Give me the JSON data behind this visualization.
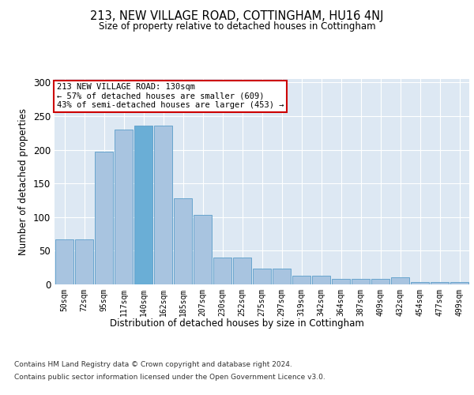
{
  "title": "213, NEW VILLAGE ROAD, COTTINGHAM, HU16 4NJ",
  "subtitle": "Size of property relative to detached houses in Cottingham",
  "xlabel": "Distribution of detached houses by size in Cottingham",
  "ylabel": "Number of detached properties",
  "footer_line1": "Contains HM Land Registry data © Crown copyright and database right 2024.",
  "footer_line2": "Contains public sector information licensed under the Open Government Licence v3.0.",
  "categories": [
    "50sqm",
    "72sqm",
    "95sqm",
    "117sqm",
    "140sqm",
    "162sqm",
    "185sqm",
    "207sqm",
    "230sqm",
    "252sqm",
    "275sqm",
    "297sqm",
    "319sqm",
    "342sqm",
    "364sqm",
    "387sqm",
    "409sqm",
    "432sqm",
    "454sqm",
    "477sqm",
    "499sqm"
  ],
  "values": [
    67,
    67,
    197,
    230,
    236,
    236,
    128,
    103,
    40,
    40,
    23,
    23,
    13,
    13,
    8,
    8,
    8,
    10,
    3,
    3,
    3
  ],
  "highlight_index": 4,
  "bar_color_normal": "#a8c4e0",
  "bar_color_highlight": "#6aaed6",
  "bar_edgecolor": "#5b9dc9",
  "background_color": "#dde8f3",
  "annotation_text": "213 NEW VILLAGE ROAD: 130sqm\n← 57% of detached houses are smaller (609)\n43% of semi-detached houses are larger (453) →",
  "annotation_box_edgecolor": "#cc0000",
  "ylim": [
    0,
    305
  ],
  "yticks": [
    0,
    50,
    100,
    150,
    200,
    250,
    300
  ]
}
